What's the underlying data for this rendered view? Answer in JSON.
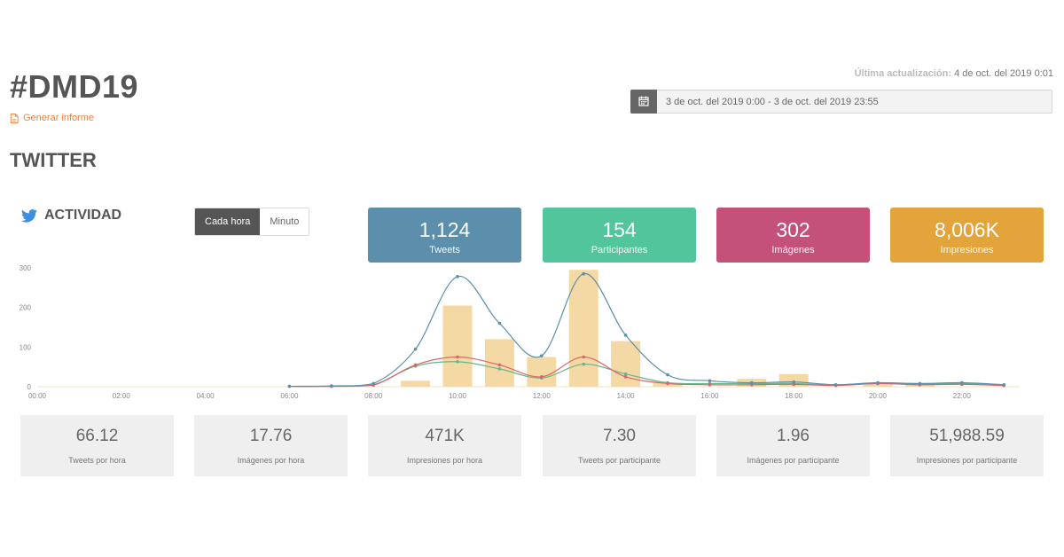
{
  "header": {
    "hashtag": "#DMD19",
    "report_link": "Generar informe",
    "last_update_label": "Última actualización:",
    "last_update_value": "4 de oct. del 2019 0:01",
    "date_range": "3 de oct. del 2019 0:00 - 3 de oct. del 2019 23:55"
  },
  "section": {
    "title": "TWITTER"
  },
  "activity": {
    "title": "ACTIVIDAD",
    "toggle": [
      {
        "label": "Cada hora",
        "active": true
      },
      {
        "label": "Minuto",
        "active": false
      }
    ]
  },
  "stats": [
    {
      "value": "1,124",
      "label": "Tweets",
      "color": "#5b8fab"
    },
    {
      "value": "154",
      "label": "Participantes",
      "color": "#52c59d"
    },
    {
      "value": "302",
      "label": "Imágenes",
      "color": "#c4517a"
    },
    {
      "value": "8,006K",
      "label": "Impresiones",
      "color": "#e3a53b"
    }
  ],
  "chart_data": {
    "type": "bar",
    "title": "ACTIVIDAD",
    "x_tick_labels": [
      "00:00",
      "02:00",
      "04:00",
      "06:00",
      "08:00",
      "10:00",
      "12:00",
      "14:00",
      "16:00",
      "18:00",
      "20:00",
      "22:00"
    ],
    "y_tick_labels": [
      "0",
      "100",
      "200",
      "300"
    ],
    "ylim": [
      0,
      300
    ],
    "hours": [
      0,
      1,
      2,
      3,
      4,
      5,
      6,
      7,
      8,
      9,
      10,
      11,
      12,
      13,
      14,
      15,
      16,
      17,
      18,
      19,
      20,
      21,
      22,
      23
    ],
    "series": [
      {
        "name": "Tweets",
        "type": "line",
        "color": "#5b8fab",
        "values": [
          0,
          0,
          0,
          0,
          0,
          0,
          1,
          2,
          8,
          95,
          278,
          160,
          78,
          285,
          130,
          30,
          15,
          10,
          12,
          5,
          10,
          8,
          10,
          5
        ]
      },
      {
        "name": "Imágenes",
        "type": "line",
        "color": "#d9676e",
        "values": [
          0,
          0,
          0,
          0,
          0,
          0,
          1,
          1,
          4,
          55,
          75,
          55,
          25,
          75,
          25,
          8,
          5,
          5,
          6,
          3,
          8,
          5,
          6,
          3
        ]
      },
      {
        "name": "Participantes",
        "type": "line",
        "color": "#6ab58a",
        "values": [
          0,
          0,
          0,
          0,
          0,
          0,
          1,
          1,
          5,
          52,
          63,
          45,
          22,
          57,
          32,
          10,
          8,
          8,
          8,
          4,
          8,
          6,
          8,
          4
        ]
      },
      {
        "name": "Impresiones",
        "type": "bar",
        "color": "#f5d9a4",
        "values": [
          0,
          0,
          0,
          0,
          0,
          0,
          0,
          0,
          0,
          15,
          205,
          120,
          75,
          295,
          115,
          10,
          0,
          20,
          32,
          0,
          10,
          10,
          0,
          0
        ]
      }
    ]
  },
  "metrics": [
    {
      "value": "66.12",
      "label": "Tweets por hora"
    },
    {
      "value": "17.76",
      "label": "Imágenes por hora"
    },
    {
      "value": "471K",
      "label": "Impresiones por hora"
    },
    {
      "value": "7.30",
      "label": "Tweets por participante"
    },
    {
      "value": "1.96",
      "label": "Imágenes por participante"
    },
    {
      "value": "51,988.59",
      "label": "Impresiones por participante"
    }
  ]
}
